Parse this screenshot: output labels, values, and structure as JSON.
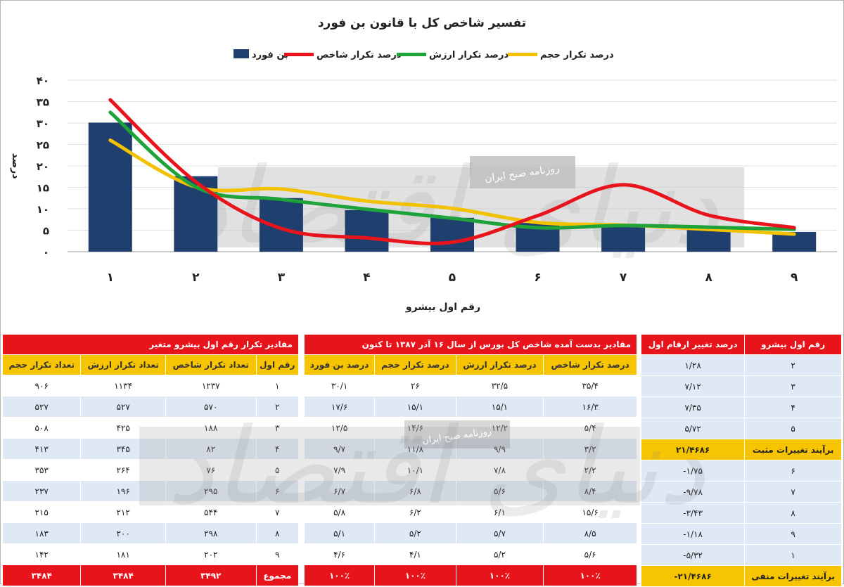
{
  "chart_data": {
    "type": "bar",
    "title": "تفسیر شاخص کل با قانون بن فورد",
    "xlabel": "رقم اول بیشرو",
    "ylabel": "درصد",
    "ylim": [
      0,
      40
    ],
    "yticks": [
      "۰",
      "۵",
      "۱۰",
      "۱۵",
      "۲۰",
      "۲۵",
      "۳۰",
      "۳۵",
      "۴۰"
    ],
    "categories": [
      "۱",
      "۲",
      "۳",
      "۴",
      "۵",
      "۶",
      "۷",
      "۸",
      "۹"
    ],
    "grid": true,
    "legend_position": "top",
    "series": [
      {
        "name": "بن فورد",
        "kind": "bar",
        "color": "#1f3f6e",
        "values": [
          30.1,
          17.6,
          12.5,
          9.7,
          7.9,
          6.7,
          5.8,
          5.1,
          4.6
        ]
      },
      {
        "name": "درصد تکرار شاخص",
        "kind": "line",
        "color": "#e8141c",
        "values": [
          35.4,
          16.3,
          5.4,
          3.2,
          2.2,
          8.4,
          15.6,
          8.5,
          5.6
        ]
      },
      {
        "name": "درصد تکرار ارزش",
        "kind": "line",
        "color": "#1ea33a",
        "values": [
          32.5,
          15.1,
          12.2,
          9.9,
          7.8,
          5.6,
          6.1,
          5.7,
          5.2
        ]
      },
      {
        "name": "درصد تکرار حجم",
        "kind": "line",
        "color": "#f2c200",
        "values": [
          26,
          15.1,
          14.6,
          11.8,
          10.1,
          6.8,
          6.2,
          5.2,
          4.1
        ]
      }
    ]
  },
  "watermark": {
    "text": "روزنامه صبح ایران",
    "logo_text": "دنیای اقتصاد"
  },
  "table_freq": {
    "title": "مقادیر تکرار رقم اول بیشرو متغیر",
    "headers": [
      "رقم اول",
      "تعداد تکرار شاخص",
      "تعداد تکرار ارزش",
      "تعداد تکرار حجم"
    ],
    "rows": [
      [
        "۱",
        "۱۲۳۷",
        "۱۱۳۴",
        "۹۰۶"
      ],
      [
        "۲",
        "۵۷۰",
        "۵۲۷",
        "۵۲۷"
      ],
      [
        "۳",
        "۱۸۸",
        "۴۲۵",
        "۵۰۸"
      ],
      [
        "۴",
        "۸۲",
        "۳۴۵",
        "۴۱۳"
      ],
      [
        "۵",
        "۷۶",
        "۲۶۴",
        "۳۵۳"
      ],
      [
        "۶",
        "۲۹۵",
        "۱۹۶",
        "۲۳۷"
      ],
      [
        "۷",
        "۵۴۴",
        "۲۱۲",
        "۲۱۵"
      ],
      [
        "۸",
        "۲۹۸",
        "۲۰۰",
        "۱۸۳"
      ],
      [
        "۹",
        "۲۰۲",
        "۱۸۱",
        "۱۴۲"
      ]
    ],
    "total": [
      "مجموع",
      "۳۴۹۲",
      "۳۴۸۴",
      "۳۴۸۴"
    ]
  },
  "table_pct": {
    "title": "مقادیر بدست آمده شاخص کل بورس از سال ۱۶ آذر ۱۳۸۷ تا کنون",
    "headers": [
      "درصد تکرار شاخص",
      "درصد تکرار ارزش",
      "درصد تکرار حجم",
      "درصد بن فورد"
    ],
    "rows": [
      [
        "۳۵/۴",
        "۳۲/۵",
        "۲۶",
        "۳۰/۱"
      ],
      [
        "۱۶/۳",
        "۱۵/۱",
        "۱۵/۱",
        "۱۷/۶"
      ],
      [
        "۵/۴",
        "۱۲/۲",
        "۱۴/۶",
        "۱۲/۵"
      ],
      [
        "۳/۲",
        "۹/۹",
        "۱۱/۸",
        "۹/۷"
      ],
      [
        "۲/۲",
        "۷/۸",
        "۱۰/۱",
        "۷/۹"
      ],
      [
        "۸/۴",
        "۵/۶",
        "۶/۸",
        "۶/۷"
      ],
      [
        "۱۵/۶",
        "۶/۱",
        "۶/۲",
        "۵/۸"
      ],
      [
        "۸/۵",
        "۵/۷",
        "۵/۲",
        "۵/۱"
      ],
      [
        "۵/۶",
        "۵/۲",
        "۴/۱",
        "۴/۶"
      ]
    ],
    "total": [
      "۱۰۰٪",
      "۱۰۰٪",
      "۱۰۰٪",
      "۱۰۰٪"
    ]
  },
  "table_change": {
    "headers": [
      "رقم اول بیشرو",
      "درصد تغییر ارقام اول"
    ],
    "rows": [
      {
        "type": "normal",
        "cells": [
          "۲",
          "۱/۲۸"
        ]
      },
      {
        "type": "normal",
        "cells": [
          "۳",
          "۷/۱۲"
        ]
      },
      {
        "type": "normal",
        "cells": [
          "۴",
          "۷/۳۵"
        ]
      },
      {
        "type": "normal",
        "cells": [
          "۵",
          "۵/۷۲"
        ]
      },
      {
        "type": "hl",
        "cells": [
          "برآیند تغییرات مثبت",
          "۲۱/۴۶۸۶"
        ]
      },
      {
        "type": "normal",
        "cells": [
          "۶",
          "-۱/۷۵"
        ]
      },
      {
        "type": "normal",
        "cells": [
          "۷",
          "-۹/۷۸"
        ]
      },
      {
        "type": "normal",
        "cells": [
          "۸",
          "-۳/۴۳"
        ]
      },
      {
        "type": "normal",
        "cells": [
          "۹",
          "-۱/۱۸"
        ]
      },
      {
        "type": "normal",
        "cells": [
          "۱",
          "-۵/۳۲"
        ]
      },
      {
        "type": "hl",
        "cells": [
          "برآیند تغییرات منفی",
          "-۲۱/۴۶۸۶"
        ]
      }
    ]
  }
}
